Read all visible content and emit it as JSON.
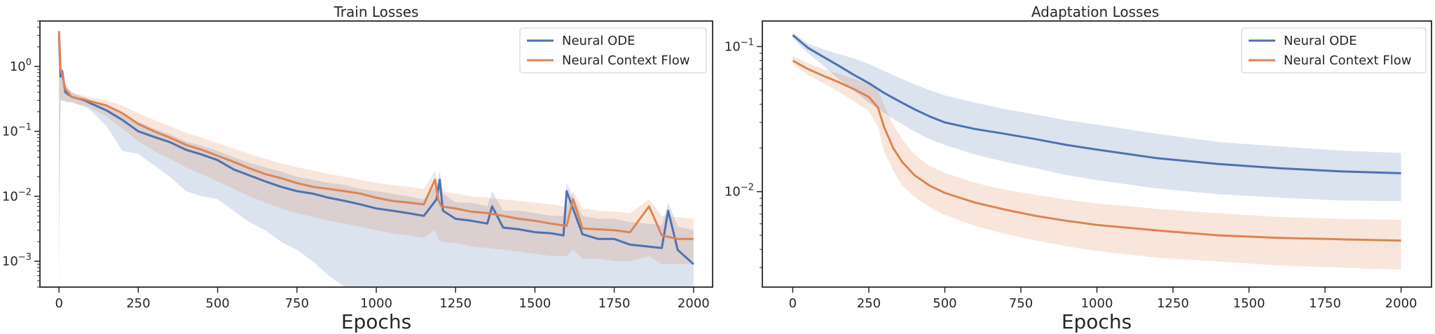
{
  "colors": {
    "series_0": "#4c72b0",
    "series_1": "#dd8452",
    "axis": "#262626"
  },
  "chart_data": [
    {
      "type": "line",
      "title": "Train Losses",
      "xlabel": "Epochs",
      "ylabel": "",
      "yscale": "log",
      "xlim": [
        -60,
        2060
      ],
      "ylim": [
        0.0004,
        5
      ],
      "x_ticks": [
        0,
        250,
        500,
        750,
        1000,
        1250,
        1500,
        1750,
        2000
      ],
      "x_tick_labels": [
        "0",
        "250",
        "500",
        "750",
        "1000",
        "1250",
        "1500",
        "1750",
        "2000"
      ],
      "y_ticks": [
        1,
        0.1,
        0.01,
        0.001
      ],
      "y_tick_labels": [
        {
          "base": "10",
          "exp": "0"
        },
        {
          "base": "10",
          "exp": "−1"
        },
        {
          "base": "10",
          "exp": "−2"
        },
        {
          "base": "10",
          "exp": "−3"
        }
      ],
      "grid": false,
      "legend_position": "top-right",
      "series": [
        {
          "name": "Neural ODE",
          "color": "#4c72b0",
          "x": [
            0,
            5,
            10,
            20,
            40,
            60,
            80,
            100,
            150,
            200,
            250,
            300,
            350,
            400,
            450,
            500,
            550,
            600,
            650,
            700,
            750,
            800,
            850,
            900,
            950,
            1000,
            1050,
            1100,
            1150,
            1190,
            1200,
            1210,
            1250,
            1300,
            1350,
            1365,
            1400,
            1450,
            1500,
            1550,
            1590,
            1600,
            1650,
            1700,
            1750,
            1800,
            1850,
            1900,
            1920,
            1950,
            2000
          ],
          "y": [
            3.0,
            0.7,
            0.85,
            0.4,
            0.34,
            0.32,
            0.3,
            0.27,
            0.21,
            0.15,
            0.1,
            0.082,
            0.068,
            0.052,
            0.044,
            0.036,
            0.026,
            0.021,
            0.017,
            0.014,
            0.012,
            0.011,
            0.0095,
            0.0085,
            0.0075,
            0.0065,
            0.006,
            0.0055,
            0.005,
            0.009,
            0.018,
            0.006,
            0.0045,
            0.0042,
            0.0038,
            0.007,
            0.0033,
            0.0031,
            0.0028,
            0.0027,
            0.0025,
            0.012,
            0.0026,
            0.0022,
            0.0022,
            0.0018,
            0.0017,
            0.0016,
            0.006,
            0.0015,
            0.0009
          ],
          "lower": [
            1e-05,
            0.3,
            0.3,
            0.28,
            0.28,
            0.26,
            0.24,
            0.21,
            0.12,
            0.05,
            0.045,
            0.03,
            0.02,
            0.012,
            0.01,
            0.009,
            0.006,
            0.004,
            0.003,
            0.002,
            0.0015,
            0.001,
            0.0006,
            0.0004,
            0.0004,
            0.0004,
            0.0004,
            0.0004,
            0.0004,
            0.0004,
            0.0004,
            0.0004,
            0.0004,
            0.0004,
            0.0004,
            0.0004,
            0.0004,
            0.0004,
            0.0004,
            0.0004,
            0.0004,
            0.0004,
            0.0004,
            0.0004,
            0.0004,
            0.0004,
            0.0004,
            0.0004,
            0.0004,
            0.0004,
            0.0004
          ],
          "upper": [
            3.5,
            1.0,
            0.9,
            0.5,
            0.4,
            0.36,
            0.33,
            0.3,
            0.24,
            0.18,
            0.14,
            0.11,
            0.09,
            0.07,
            0.06,
            0.05,
            0.04,
            0.033,
            0.028,
            0.024,
            0.02,
            0.018,
            0.016,
            0.015,
            0.013,
            0.012,
            0.011,
            0.01,
            0.009,
            0.015,
            0.025,
            0.011,
            0.008,
            0.008,
            0.007,
            0.012,
            0.006,
            0.006,
            0.0055,
            0.005,
            0.005,
            0.016,
            0.005,
            0.0045,
            0.0045,
            0.004,
            0.0038,
            0.0036,
            0.008,
            0.0034,
            0.003
          ]
        },
        {
          "name": "Neural Context Flow",
          "color": "#dd8452",
          "x": [
            0,
            5,
            10,
            20,
            40,
            60,
            80,
            100,
            150,
            200,
            250,
            300,
            350,
            400,
            450,
            500,
            550,
            600,
            650,
            700,
            750,
            800,
            850,
            900,
            950,
            1000,
            1050,
            1100,
            1150,
            1185,
            1195,
            1205,
            1250,
            1300,
            1350,
            1400,
            1450,
            1500,
            1550,
            1600,
            1620,
            1650,
            1700,
            1750,
            1800,
            1860,
            1900,
            1950,
            2000
          ],
          "y": [
            3.5,
            0.9,
            0.75,
            0.45,
            0.34,
            0.32,
            0.31,
            0.29,
            0.25,
            0.19,
            0.13,
            0.1,
            0.08,
            0.062,
            0.052,
            0.042,
            0.034,
            0.027,
            0.022,
            0.019,
            0.016,
            0.014,
            0.013,
            0.012,
            0.011,
            0.0095,
            0.0085,
            0.008,
            0.0075,
            0.018,
            0.009,
            0.007,
            0.0065,
            0.0058,
            0.0055,
            0.005,
            0.0045,
            0.0042,
            0.0038,
            0.0035,
            0.009,
            0.0032,
            0.0031,
            0.003,
            0.0028,
            0.007,
            0.0025,
            0.0022,
            0.0022
          ],
          "lower": [
            0.01,
            0.3,
            0.3,
            0.3,
            0.28,
            0.26,
            0.25,
            0.23,
            0.17,
            0.11,
            0.07,
            0.05,
            0.038,
            0.028,
            0.022,
            0.017,
            0.013,
            0.01,
            0.008,
            0.0065,
            0.0055,
            0.0048,
            0.0042,
            0.0038,
            0.0034,
            0.003,
            0.0027,
            0.0025,
            0.0023,
            0.003,
            0.0022,
            0.002,
            0.0019,
            0.0017,
            0.0016,
            0.0015,
            0.0014,
            0.0013,
            0.0012,
            0.0012,
            0.0015,
            0.0011,
            0.0011,
            0.001,
            0.001,
            0.0012,
            0.0009,
            0.0009,
            0.0009
          ],
          "upper": [
            3.8,
            1.2,
            1.0,
            0.55,
            0.4,
            0.37,
            0.35,
            0.33,
            0.3,
            0.25,
            0.19,
            0.15,
            0.12,
            0.095,
            0.08,
            0.066,
            0.054,
            0.045,
            0.038,
            0.032,
            0.028,
            0.025,
            0.022,
            0.02,
            0.018,
            0.016,
            0.015,
            0.014,
            0.013,
            0.025,
            0.015,
            0.012,
            0.011,
            0.01,
            0.0095,
            0.009,
            0.0085,
            0.008,
            0.0075,
            0.007,
            0.012,
            0.0065,
            0.006,
            0.0058,
            0.0055,
            0.009,
            0.005,
            0.0048,
            0.0045
          ]
        }
      ]
    },
    {
      "type": "line",
      "title": "Adaptation Losses",
      "xlabel": "Epochs",
      "ylabel": "",
      "yscale": "log",
      "xlim": [
        -100,
        2100
      ],
      "ylim": [
        0.0022,
        0.15
      ],
      "x_ticks": [
        0,
        250,
        500,
        750,
        1000,
        1250,
        1500,
        1750,
        2000
      ],
      "x_tick_labels": [
        "0",
        "250",
        "500",
        "750",
        "1000",
        "1250",
        "1500",
        "1750",
        "2000"
      ],
      "y_ticks": [
        0.1,
        0.01
      ],
      "y_tick_labels": [
        {
          "base": "10",
          "exp": "−1"
        },
        {
          "base": "10",
          "exp": "−2"
        }
      ],
      "grid": false,
      "legend_position": "top-right",
      "series": [
        {
          "name": "Neural ODE",
          "color": "#4c72b0",
          "x": [
            0,
            50,
            100,
            150,
            200,
            250,
            300,
            350,
            400,
            450,
            500,
            600,
            700,
            800,
            900,
            1000,
            1200,
            1400,
            1600,
            1800,
            2000
          ],
          "y": [
            0.12,
            0.098,
            0.085,
            0.074,
            0.064,
            0.056,
            0.048,
            0.042,
            0.037,
            0.033,
            0.03,
            0.027,
            0.025,
            0.023,
            0.021,
            0.0195,
            0.017,
            0.0155,
            0.0145,
            0.0138,
            0.0134
          ],
          "lower": [
            0.115,
            0.09,
            0.074,
            0.06,
            0.05,
            0.041,
            0.035,
            0.03,
            0.026,
            0.023,
            0.021,
            0.018,
            0.016,
            0.0145,
            0.013,
            0.012,
            0.0105,
            0.0096,
            0.0091,
            0.0087,
            0.0086
          ],
          "upper": [
            0.125,
            0.105,
            0.096,
            0.089,
            0.083,
            0.076,
            0.068,
            0.061,
            0.055,
            0.05,
            0.046,
            0.041,
            0.037,
            0.034,
            0.031,
            0.029,
            0.025,
            0.022,
            0.0205,
            0.0192,
            0.0185
          ]
        },
        {
          "name": "Neural Context Flow",
          "color": "#dd8452",
          "x": [
            0,
            50,
            100,
            150,
            200,
            250,
            280,
            300,
            330,
            360,
            400,
            450,
            500,
            600,
            700,
            800,
            900,
            1000,
            1200,
            1400,
            1600,
            1800,
            2000
          ],
          "y": [
            0.08,
            0.07,
            0.063,
            0.057,
            0.051,
            0.045,
            0.038,
            0.028,
            0.02,
            0.016,
            0.013,
            0.011,
            0.0098,
            0.0084,
            0.0075,
            0.0068,
            0.0063,
            0.0059,
            0.0054,
            0.005,
            0.0048,
            0.0047,
            0.0046
          ],
          "lower": [
            0.076,
            0.064,
            0.056,
            0.049,
            0.042,
            0.036,
            0.028,
            0.019,
            0.014,
            0.011,
            0.0092,
            0.0078,
            0.0069,
            0.0058,
            0.0051,
            0.0046,
            0.0042,
            0.0039,
            0.0035,
            0.0033,
            0.0031,
            0.003,
            0.0029
          ],
          "upper": [
            0.086,
            0.077,
            0.07,
            0.065,
            0.06,
            0.055,
            0.05,
            0.04,
            0.029,
            0.023,
            0.018,
            0.015,
            0.0135,
            0.0115,
            0.0103,
            0.0095,
            0.0088,
            0.0083,
            0.0076,
            0.0071,
            0.0067,
            0.0065,
            0.0064
          ]
        }
      ]
    }
  ]
}
